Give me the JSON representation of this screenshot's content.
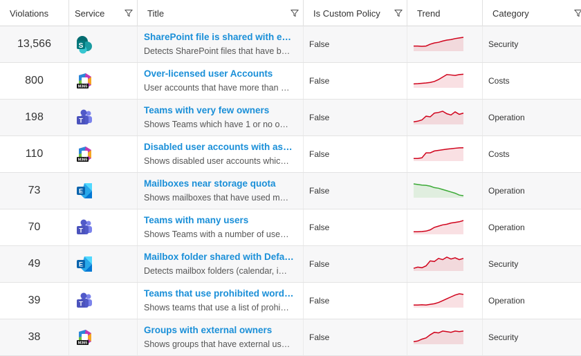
{
  "columns": {
    "violations": "Violations",
    "service": "Service",
    "title": "Title",
    "policy": "Is Custom Policy",
    "trend": "Trend",
    "category": "Category"
  },
  "colors": {
    "link": "#1a8fd8",
    "trend_up": "#d0021b",
    "trend_down": "#3aa935"
  },
  "rows": [
    {
      "violations": "13,566",
      "service": "sharepoint-icon",
      "title": "SharePoint file is shared with e…",
      "subtitle": "Detects SharePoint files that have b…",
      "policy": "False",
      "trend_direction": "up",
      "trend": [
        0.3,
        0.3,
        0.28,
        0.3,
        0.45,
        0.55,
        0.6,
        0.7,
        0.78,
        0.82,
        0.9,
        0.95,
        1.0
      ],
      "category": "Security"
    },
    {
      "violations": "800",
      "service": "m365-icon",
      "title": "Over-licensed user Accounts",
      "subtitle": "User accounts that have more than …",
      "policy": "False",
      "trend_direction": "up",
      "trend": [
        0.2,
        0.22,
        0.25,
        0.28,
        0.32,
        0.4,
        0.55,
        0.75,
        0.95,
        0.92,
        0.88,
        0.95,
        0.98
      ],
      "category": "Costs"
    },
    {
      "violations": "198",
      "service": "teams-icon",
      "title": "Teams with very few owners",
      "subtitle": "Shows Teams which have 1 or no o…",
      "policy": "False",
      "trend_direction": "up",
      "trend": [
        0.1,
        0.15,
        0.25,
        0.55,
        0.5,
        0.8,
        0.85,
        0.95,
        0.75,
        0.65,
        0.9,
        0.7,
        0.8
      ],
      "category": "Operation"
    },
    {
      "violations": "110",
      "service": "m365-icon",
      "title": "Disabled user accounts with ass…",
      "subtitle": "Shows disabled user accounts whic…",
      "policy": "False",
      "trend_direction": "up",
      "trend": [
        0.1,
        0.1,
        0.15,
        0.55,
        0.55,
        0.7,
        0.75,
        0.8,
        0.85,
        0.88,
        0.92,
        0.95,
        0.96
      ],
      "category": "Costs"
    },
    {
      "violations": "73",
      "service": "exchange-icon",
      "title": "Mailboxes near storage quota",
      "subtitle": "Shows mailboxes that have used m…",
      "policy": "False",
      "trend_direction": "down",
      "trend": [
        1.0,
        0.95,
        0.9,
        0.88,
        0.82,
        0.7,
        0.65,
        0.55,
        0.45,
        0.35,
        0.25,
        0.1,
        0.05
      ],
      "category": "Operation"
    },
    {
      "violations": "70",
      "service": "teams-icon",
      "title": "Teams with many users",
      "subtitle": "Shows Teams with a number of use…",
      "policy": "False",
      "trend_direction": "up",
      "trend": [
        0.1,
        0.1,
        0.12,
        0.15,
        0.25,
        0.45,
        0.55,
        0.65,
        0.7,
        0.8,
        0.85,
        0.9,
        1.0
      ],
      "category": "Operation"
    },
    {
      "violations": "49",
      "service": "exchange-icon",
      "title": "Mailbox folder shared with Defa…",
      "subtitle": "Detects mailbox folders (calendar, i…",
      "policy": "False",
      "trend_direction": "up",
      "trend": [
        0.1,
        0.2,
        0.15,
        0.3,
        0.7,
        0.65,
        0.9,
        0.8,
        1.0,
        0.85,
        0.95,
        0.8,
        0.9
      ],
      "category": "Security"
    },
    {
      "violations": "39",
      "service": "teams-icon",
      "title": "Teams that use prohibited word…",
      "subtitle": "Shows teams that use a list of prohi…",
      "policy": "False",
      "trend_direction": "up",
      "trend": [
        0.1,
        0.1,
        0.12,
        0.1,
        0.15,
        0.2,
        0.3,
        0.45,
        0.6,
        0.75,
        0.9,
        1.0,
        0.95
      ],
      "category": "Operation"
    },
    {
      "violations": "38",
      "service": "m365-icon",
      "title": "Groups with external owners",
      "subtitle": "Shows groups that have external us…",
      "policy": "False",
      "trend_direction": "up",
      "trend": [
        0.1,
        0.15,
        0.3,
        0.4,
        0.65,
        0.85,
        0.8,
        0.95,
        0.9,
        0.85,
        0.95,
        0.9,
        0.95
      ],
      "category": "Security"
    }
  ]
}
